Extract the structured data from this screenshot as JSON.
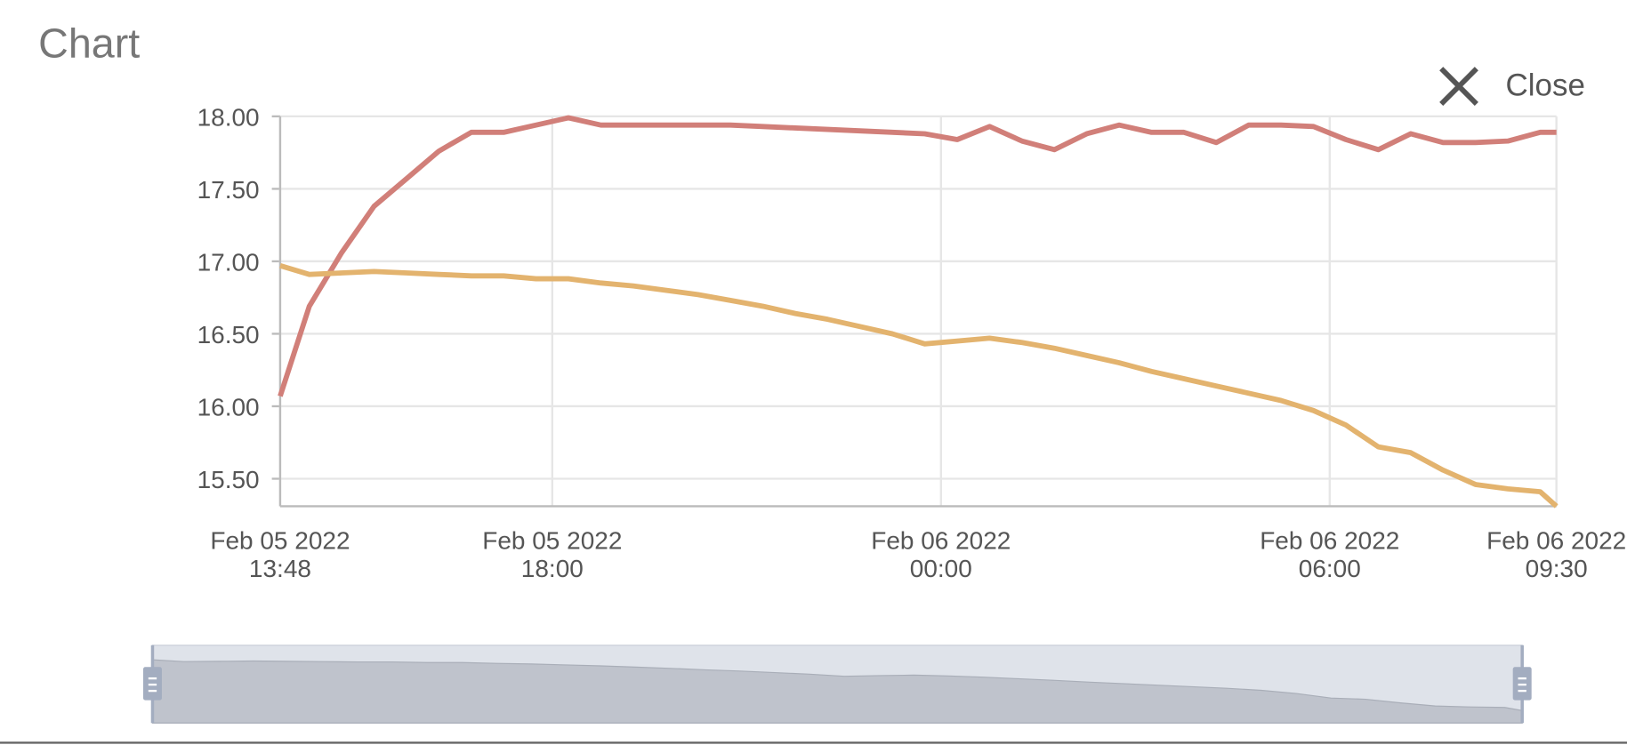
{
  "title": "Chart",
  "close_label": "Close",
  "chart_data": {
    "type": "line",
    "x": [
      "2022-02-05T13:48",
      "2022-02-05T14:15",
      "2022-02-05T14:45",
      "2022-02-05T15:15",
      "2022-02-05T15:45",
      "2022-02-05T16:15",
      "2022-02-05T16:45",
      "2022-02-05T17:15",
      "2022-02-05T17:45",
      "2022-02-05T18:15",
      "2022-02-05T18:45",
      "2022-02-05T19:15",
      "2022-02-05T19:45",
      "2022-02-05T20:15",
      "2022-02-05T20:45",
      "2022-02-05T21:15",
      "2022-02-05T21:45",
      "2022-02-05T22:15",
      "2022-02-05T22:45",
      "2022-02-05T23:15",
      "2022-02-05T23:45",
      "2022-02-06T00:15",
      "2022-02-06T00:45",
      "2022-02-06T01:15",
      "2022-02-06T01:45",
      "2022-02-06T02:15",
      "2022-02-06T02:45",
      "2022-02-06T03:15",
      "2022-02-06T03:45",
      "2022-02-06T04:15",
      "2022-02-06T04:45",
      "2022-02-06T05:15",
      "2022-02-06T05:45",
      "2022-02-06T06:15",
      "2022-02-06T06:45",
      "2022-02-06T07:15",
      "2022-02-06T07:45",
      "2022-02-06T08:15",
      "2022-02-06T08:45",
      "2022-02-06T09:15",
      "2022-02-06T09:30"
    ],
    "series": [
      {
        "color": "#d17f79",
        "values": [
          16.07,
          16.69,
          17.06,
          17.38,
          17.57,
          17.76,
          17.89,
          17.89,
          17.94,
          17.99,
          17.94,
          17.94,
          17.94,
          17.94,
          17.94,
          17.93,
          17.92,
          17.91,
          17.9,
          17.89,
          17.88,
          17.84,
          17.93,
          17.83,
          17.77,
          17.88,
          17.94,
          17.89,
          17.89,
          17.82,
          17.94,
          17.94,
          17.93,
          17.84,
          17.77,
          17.88,
          17.82,
          17.82,
          17.83,
          17.89,
          17.89
        ]
      },
      {
        "color": "#e3b36e",
        "values": [
          16.97,
          16.91,
          16.92,
          16.93,
          16.92,
          16.91,
          16.9,
          16.9,
          16.88,
          16.88,
          16.85,
          16.83,
          16.8,
          16.77,
          16.73,
          16.69,
          16.64,
          16.6,
          16.55,
          16.5,
          16.43,
          16.45,
          16.47,
          16.44,
          16.4,
          16.35,
          16.3,
          16.24,
          16.19,
          16.14,
          16.09,
          16.04,
          15.97,
          15.87,
          15.72,
          15.68,
          15.56,
          15.46,
          15.43,
          15.41,
          15.31
        ]
      }
    ],
    "ylim": [
      15.31,
      18.0
    ],
    "yticks": [
      {
        "value": 15.5,
        "label": "15.50"
      },
      {
        "value": 16,
        "label": "16.00"
      },
      {
        "value": 16.5,
        "label": "16.50"
      },
      {
        "value": 17,
        "label": "17.00"
      },
      {
        "value": 17.5,
        "label": "17.50"
      },
      {
        "value": 18,
        "label": "18.00"
      }
    ],
    "xlim": [
      "2022-02-05T13:48",
      "2022-02-06T09:30"
    ],
    "xticks": [
      {
        "value": "2022-02-05T13:48",
        "label": [
          "Feb 05 2022",
          "13:48"
        ]
      },
      {
        "value": "2022-02-05T18:00",
        "label": [
          "Feb 05 2022",
          "18:00"
        ]
      },
      {
        "value": "2022-02-06T00:00",
        "label": [
          "Feb 06 2022",
          "00:00"
        ]
      },
      {
        "value": "2022-02-06T06:00",
        "label": [
          "Feb 06 2022",
          "06:00"
        ]
      },
      {
        "value": "2022-02-06T09:30",
        "label": [
          "Feb 06 2022",
          "09:30"
        ]
      }
    ],
    "grid": true,
    "navigator_series": 1
  }
}
